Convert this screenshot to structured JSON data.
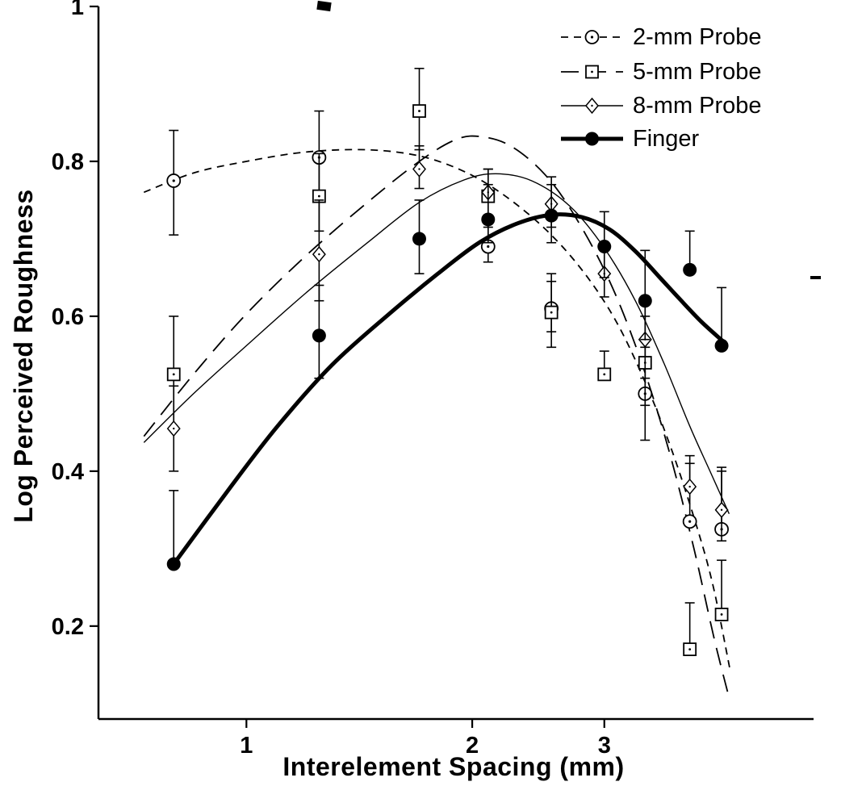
{
  "figure": {
    "background": "#ffffff",
    "ink": "#000000"
  },
  "chart_data": {
    "type": "scatter",
    "title": "",
    "xlabel": "Interelement Spacing (mm)",
    "ylabel": "Log Perceived Roughness",
    "x_scale": "log",
    "x_range": [
      0.635,
      5.66
    ],
    "y_range": [
      0.08,
      1.0
    ],
    "x_ticks": [
      {
        "value": 1,
        "label": "1"
      },
      {
        "value": 2,
        "label": "2"
      },
      {
        "value": 3,
        "label": "3"
      }
    ],
    "y_ticks": [
      {
        "value": 0.2,
        "label": "0.2"
      },
      {
        "value": 0.4,
        "label": "0.4"
      },
      {
        "value": 0.6,
        "label": "0.6"
      },
      {
        "value": 0.8,
        "label": "0.8"
      },
      {
        "value": 1,
        "label": "1"
      }
    ],
    "grid": false,
    "legend_position": "top-right",
    "series": [
      {
        "name": "2-mm Probe",
        "marker": "open-circle",
        "line": "dash-short",
        "line_width": 1.8,
        "x": [
          0.8,
          1.25,
          2.1,
          2.55,
          3.4,
          3.9,
          4.3
        ],
        "y": [
          0.775,
          0.805,
          0.69,
          0.61,
          0.5,
          0.335,
          0.325
        ],
        "err_up": [
          0.065,
          0.06,
          0.025,
          0.035,
          0.06,
          0.075,
          0.08
        ],
        "err_down": [
          0.07,
          0.05,
          0.02,
          0.03,
          0.06,
          0,
          0
        ],
        "fit": [
          [
            0.73,
            0.76
          ],
          [
            0.85,
            0.785
          ],
          [
            1.0,
            0.8
          ],
          [
            1.2,
            0.812
          ],
          [
            1.45,
            0.815
          ],
          [
            1.7,
            0.807
          ],
          [
            1.95,
            0.787
          ],
          [
            2.2,
            0.757
          ],
          [
            2.5,
            0.713
          ],
          [
            2.8,
            0.66
          ],
          [
            3.1,
            0.596
          ],
          [
            3.4,
            0.515
          ],
          [
            3.7,
            0.424
          ],
          [
            4.0,
            0.323
          ],
          [
            4.2,
            0.247
          ],
          [
            4.42,
            0.14
          ]
        ]
      },
      {
        "name": "5-mm Probe",
        "marker": "open-square",
        "line": "dash-long",
        "line_width": 1.8,
        "x": [
          0.8,
          1.25,
          1.7,
          2.1,
          2.55,
          3.0,
          3.4,
          3.9,
          4.3
        ],
        "y": [
          0.525,
          0.755,
          0.865,
          0.755,
          0.605,
          0.525,
          0.54,
          0.17,
          0.215
        ],
        "err_up": [
          0.075,
          0.055,
          0.055,
          0.035,
          0.05,
          0.03,
          0.06,
          0.06,
          0.07
        ],
        "err_down": [
          0.07,
          0.045,
          0.05,
          0.03,
          0.045,
          0,
          0.055,
          0,
          0
        ],
        "fit": [
          [
            0.73,
            0.445
          ],
          [
            0.85,
            0.525
          ],
          [
            1.0,
            0.603
          ],
          [
            1.2,
            0.678
          ],
          [
            1.45,
            0.747
          ],
          [
            1.7,
            0.8
          ],
          [
            1.9,
            0.828
          ],
          [
            2.05,
            0.832
          ],
          [
            2.25,
            0.82
          ],
          [
            2.5,
            0.783
          ],
          [
            2.75,
            0.727
          ],
          [
            3.05,
            0.645
          ],
          [
            3.35,
            0.545
          ],
          [
            3.65,
            0.43
          ],
          [
            3.95,
            0.3
          ],
          [
            4.2,
            0.185
          ],
          [
            4.38,
            0.115
          ]
        ]
      },
      {
        "name": "8-mm Probe",
        "marker": "open-diamond",
        "line": "solid",
        "line_width": 1.4,
        "x": [
          0.8,
          1.25,
          1.7,
          2.1,
          2.55,
          3.0,
          3.4,
          3.9,
          4.3
        ],
        "y": [
          0.455,
          0.68,
          0.79,
          0.76,
          0.745,
          0.655,
          0.57,
          0.38,
          0.35
        ],
        "err_up": [
          0.055,
          0.07,
          0.03,
          0.03,
          0.035,
          0.04,
          0.05,
          0.04,
          0.05
        ],
        "err_down": [
          0.055,
          0.06,
          0.025,
          0,
          0.03,
          0.03,
          0.05,
          0,
          0.04
        ],
        "fit": [
          [
            0.73,
            0.437
          ],
          [
            0.85,
            0.5
          ],
          [
            1.0,
            0.562
          ],
          [
            1.2,
            0.63
          ],
          [
            1.45,
            0.695
          ],
          [
            1.7,
            0.747
          ],
          [
            1.95,
            0.776
          ],
          [
            2.15,
            0.784
          ],
          [
            2.4,
            0.775
          ],
          [
            2.7,
            0.742
          ],
          [
            3.0,
            0.688
          ],
          [
            3.3,
            0.62
          ],
          [
            3.6,
            0.54
          ],
          [
            3.9,
            0.458
          ],
          [
            4.15,
            0.4
          ],
          [
            4.4,
            0.345
          ]
        ]
      },
      {
        "name": "Finger",
        "marker": "filled-circle",
        "line": "solid",
        "line_width": 5,
        "x": [
          0.8,
          1.25,
          1.7,
          2.1,
          2.55,
          3.0,
          3.4,
          3.9,
          4.3
        ],
        "y": [
          0.28,
          0.575,
          0.7,
          0.725,
          0.73,
          0.69,
          0.62,
          0.66,
          0.562
        ],
        "err_up": [
          0.095,
          0.065,
          0.05,
          0.045,
          0.04,
          0.045,
          0.065,
          0.05,
          0.075
        ],
        "err_down": [
          0,
          0.055,
          0.045,
          0.03,
          0.035,
          0.04,
          0.05,
          0,
          0
        ],
        "fit": [
          [
            0.8,
            0.28
          ],
          [
            0.95,
            0.378
          ],
          [
            1.1,
            0.458
          ],
          [
            1.3,
            0.537
          ],
          [
            1.55,
            0.603
          ],
          [
            1.8,
            0.655
          ],
          [
            2.05,
            0.696
          ],
          [
            2.3,
            0.72
          ],
          [
            2.55,
            0.731
          ],
          [
            2.8,
            0.728
          ],
          [
            3.05,
            0.712
          ],
          [
            3.3,
            0.684
          ],
          [
            3.55,
            0.651
          ],
          [
            3.8,
            0.62
          ],
          [
            4.05,
            0.592
          ],
          [
            4.35,
            0.565
          ]
        ]
      }
    ]
  }
}
